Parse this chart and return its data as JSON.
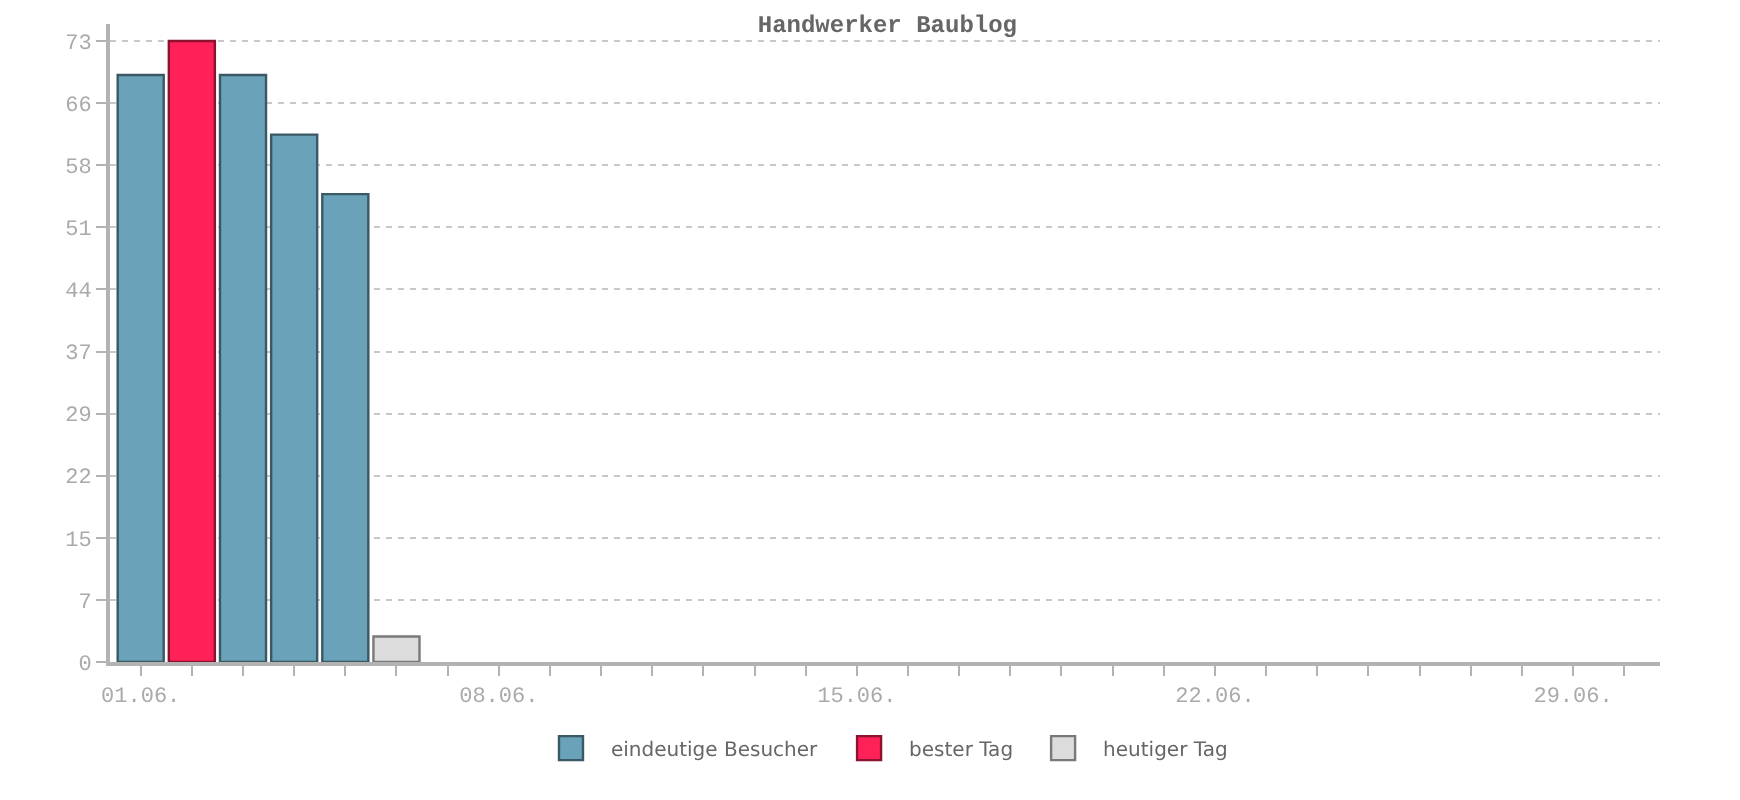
{
  "chart_data": {
    "type": "bar",
    "title": "Handwerker Baublog",
    "categories": [
      "01.06.",
      null,
      null,
      null,
      null,
      null,
      null,
      "08.06.",
      null,
      null,
      null,
      null,
      null,
      null,
      "15.06.",
      null,
      null,
      null,
      null,
      null,
      null,
      "22.06.",
      null,
      null,
      null,
      null,
      null,
      null,
      "29.06.",
      null
    ],
    "series": [
      {
        "name": "eindeutige Besucher",
        "color": "#6aa2b9",
        "values": [
          69,
          null,
          69,
          62,
          55,
          null,
          null,
          null,
          null,
          null,
          null,
          null,
          null,
          null,
          null,
          null,
          null,
          null,
          null,
          null,
          null,
          null,
          null,
          null,
          null,
          null,
          null,
          null,
          null,
          null
        ]
      },
      {
        "name": "bester Tag",
        "color": "#ff2157",
        "values": [
          null,
          73,
          null,
          null,
          null,
          null,
          null,
          null,
          null,
          null,
          null,
          null,
          null,
          null,
          null,
          null,
          null,
          null,
          null,
          null,
          null,
          null,
          null,
          null,
          null,
          null,
          null,
          null,
          null,
          null
        ]
      },
      {
        "name": "heutiger Tag",
        "color": "#dcdcdc",
        "values": [
          null,
          null,
          null,
          null,
          null,
          3,
          null,
          null,
          null,
          null,
          null,
          null,
          null,
          null,
          null,
          null,
          null,
          null,
          null,
          null,
          null,
          null,
          null,
          null,
          null,
          null,
          null,
          null,
          null,
          null
        ]
      }
    ],
    "ylim": [
      0,
      75
    ],
    "yticks": [
      0,
      {
        "value": 7.3,
        "label": "7"
      },
      {
        "value": 14.6,
        "label": "15"
      },
      {
        "value": 21.9,
        "label": "22"
      },
      {
        "value": 29.2,
        "label": "29"
      },
      {
        "value": 36.5,
        "label": "37"
      },
      {
        "value": 43.8,
        "label": "44"
      },
      {
        "value": 51.1,
        "label": "51"
      },
      {
        "value": 58.4,
        "label": "58"
      },
      {
        "value": 65.7,
        "label": "66"
      },
      73
    ],
    "grid": "y",
    "legend": "bottom"
  }
}
